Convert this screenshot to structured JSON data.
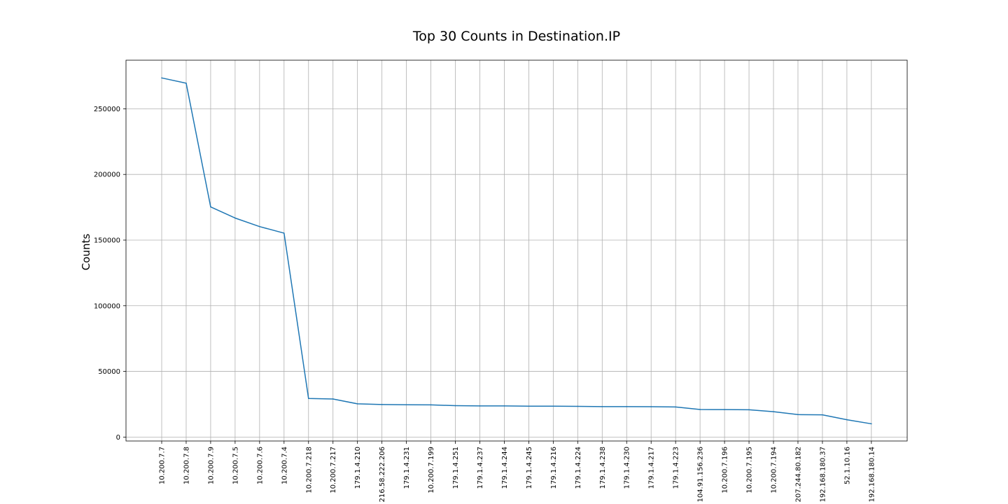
{
  "chart_data": {
    "type": "line",
    "title": "Top 30 Counts in Destination.IP",
    "xlabel": "",
    "ylabel": "Counts",
    "grid": true,
    "ylim": [
      -3000,
      287000
    ],
    "yticks": [
      0,
      50000,
      100000,
      150000,
      200000,
      250000
    ],
    "categories": [
      "10.200.7.7",
      "10.200.7.8",
      "10.200.7.9",
      "10.200.7.5",
      "10.200.7.6",
      "10.200.7.4",
      "10.200.7.218",
      "10.200.7.217",
      "179.1.4.210",
      "216.58.222.206",
      "179.1.4.231",
      "10.200.7.199",
      "179.1.4.251",
      "179.1.4.237",
      "179.1.4.244",
      "179.1.4.245",
      "179.1.4.216",
      "179.1.4.224",
      "179.1.4.238",
      "179.1.4.230",
      "179.1.4.217",
      "179.1.4.223",
      "104.91.156.236",
      "10.200.7.196",
      "10.200.7.195",
      "10.200.7.194",
      "207.244.80.182",
      "192.168.180.37",
      "52.1.10.16",
      "192.168.180.14"
    ],
    "series": [
      {
        "name": "Counts",
        "color": "#1f77b4",
        "values": [
          273500,
          269500,
          175300,
          166800,
          160300,
          155300,
          29400,
          29000,
          25300,
          24800,
          24600,
          24500,
          23900,
          23700,
          23700,
          23500,
          23500,
          23400,
          23200,
          23200,
          23100,
          22900,
          21000,
          20900,
          20800,
          19300,
          17100,
          16900,
          13200,
          10100
        ]
      }
    ]
  }
}
